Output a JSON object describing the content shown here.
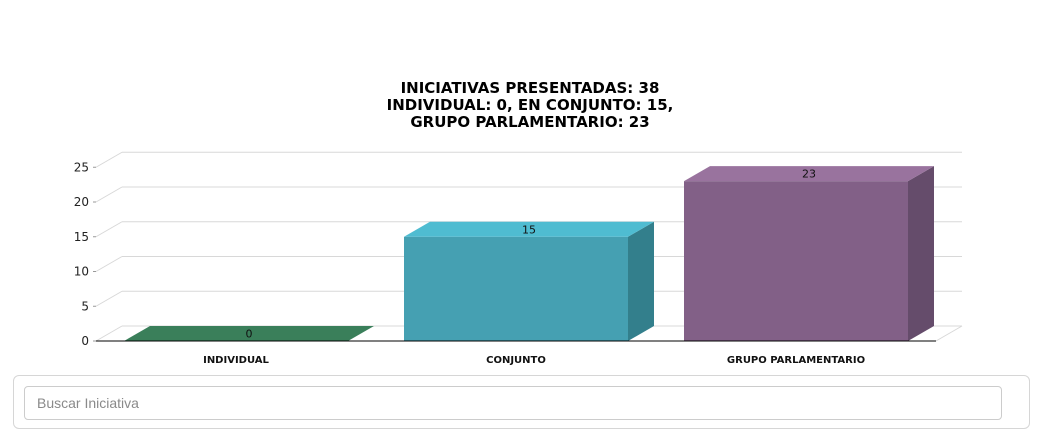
{
  "chart_data": {
    "type": "bar",
    "title": [
      "INICIATIVAS PRESENTADAS: 38",
      "INDIVIDUAL: 0, EN CONJUNTO: 15,",
      "GRUPO PARLAMENTARIO: 23"
    ],
    "categories": [
      "INDIVIDUAL",
      "CONJUNTO",
      "GRUPO PARLAMENTARIO"
    ],
    "values": [
      0,
      15,
      23
    ],
    "data_labels": [
      "0",
      "15",
      "23"
    ],
    "yticks": [
      0,
      5,
      10,
      15,
      20,
      25
    ],
    "ylim": [
      0,
      25
    ],
    "grid": true,
    "style": "3d-column",
    "colors": {
      "front": [
        "#3a7f5a",
        "#45a0b2",
        "#826087"
      ],
      "top": [
        "#3a7f5a",
        "#4fbcd1",
        "#99739e"
      ],
      "side": [
        "#2c5f44",
        "#337f8c",
        "#654c6b"
      ],
      "grid": "#d8d8d8",
      "axis": "#000000"
    }
  },
  "search": {
    "placeholder": "Buscar Iniciativa"
  }
}
